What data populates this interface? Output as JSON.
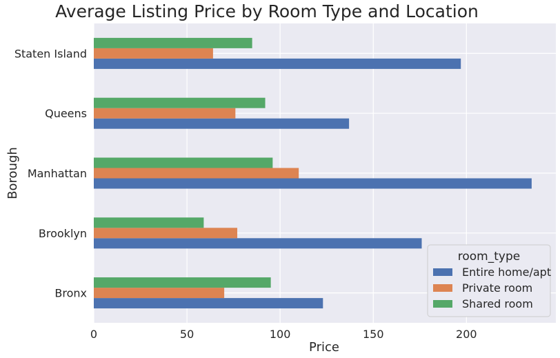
{
  "chart_data": {
    "type": "bar",
    "orientation": "horizontal",
    "title": "Average Listing Price by Room Type and Location",
    "xlabel": "Price",
    "ylabel": "Borough",
    "categories": [
      "Bronx",
      "Brooklyn",
      "Manhattan",
      "Queens",
      "Staten Island"
    ],
    "series": [
      {
        "name": "Entire home/apt",
        "color": "#4c72b0",
        "values": [
          123,
          176,
          235,
          137,
          197
        ]
      },
      {
        "name": "Private room",
        "color": "#dd8452",
        "values": [
          70,
          77,
          110,
          76,
          64
        ]
      },
      {
        "name": "Shared room",
        "color": "#55a868",
        "values": [
          95,
          59,
          96,
          92,
          85
        ]
      }
    ],
    "xlim": [
      0,
      248
    ],
    "xticks": [
      0,
      50,
      100,
      150,
      200
    ],
    "grid": true,
    "legend": {
      "title": "room_type",
      "placement": "bottom-right"
    }
  }
}
